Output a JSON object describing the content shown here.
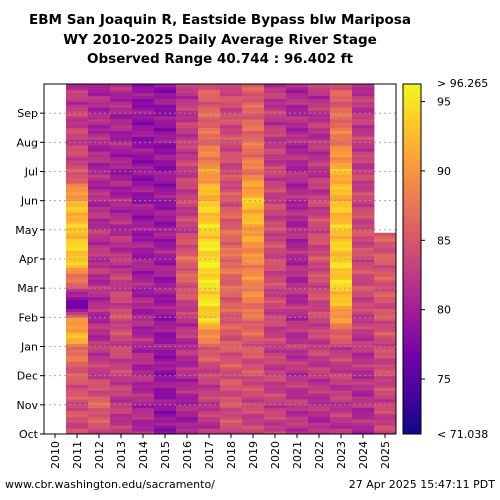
{
  "chart_data": {
    "type": "heatmap",
    "title_lines": [
      "EBM San Joaquin R, Eastside Bypass blw Mariposa",
      "WY 2010-2025 Daily Average River Stage",
      "Observed Range 40.744 : 96.402 ft"
    ],
    "x_categories": [
      "2010",
      "2011",
      "2012",
      "2013",
      "2014",
      "2015",
      "2016",
      "2017",
      "2018",
      "2019",
      "2020",
      "2021",
      "2022",
      "2023",
      "2024",
      "2025"
    ],
    "y_ticks": [
      "Oct",
      "Nov",
      "Dec",
      "Jan",
      "Feb",
      "Mar",
      "Apr",
      "May",
      "Jun",
      "Jul",
      "Aug",
      "Sep"
    ],
    "colorbar": {
      "min": 71.038,
      "max": 96.265,
      "ticks": [
        75,
        80,
        85,
        90,
        95
      ],
      "min_label": "< 71.038",
      "max_label": "> 96.265",
      "colors": [
        "#0d0887",
        "#46039f",
        "#7201a8",
        "#9c179e",
        "#bd3786",
        "#d8576b",
        "#ed7953",
        "#fb9f3a",
        "#fdca26",
        "#f0f921"
      ]
    },
    "stage_by_year": [
      {
        "year": "2010",
        "start_month": 11.9,
        "profile": [
          [
            0,
            81
          ],
          [
            9,
            81
          ],
          [
            11.9,
            81
          ]
        ]
      },
      {
        "year": "2011",
        "start_month": 0,
        "profile": [
          [
            0,
            84
          ],
          [
            2,
            85
          ],
          [
            3,
            88
          ],
          [
            3.4,
            93
          ],
          [
            4,
            88
          ],
          [
            4.3,
            79
          ],
          [
            4.5,
            74
          ],
          [
            4.7,
            80
          ],
          [
            5,
            84
          ],
          [
            6,
            94
          ],
          [
            7,
            93
          ],
          [
            8,
            92
          ],
          [
            9,
            84
          ],
          [
            12,
            82
          ]
        ]
      },
      {
        "year": "2012",
        "start_month": 0,
        "profile": [
          [
            0,
            84
          ],
          [
            1,
            86
          ],
          [
            2,
            83
          ],
          [
            4,
            81
          ],
          [
            6,
            82
          ],
          [
            9,
            81
          ],
          [
            12,
            81
          ]
        ]
      },
      {
        "year": "2013",
        "start_month": 0,
        "profile": [
          [
            0,
            82
          ],
          [
            2,
            83
          ],
          [
            4,
            84
          ],
          [
            6,
            82
          ],
          [
            9,
            80
          ],
          [
            12,
            81
          ]
        ]
      },
      {
        "year": "2014",
        "start_month": 0,
        "profile": [
          [
            0,
            81
          ],
          [
            3,
            81
          ],
          [
            6,
            80
          ],
          [
            9,
            79
          ],
          [
            12,
            79
          ]
        ]
      },
      {
        "year": "2015",
        "start_month": 0,
        "profile": [
          [
            0,
            79
          ],
          [
            2,
            79
          ],
          [
            6,
            80
          ],
          [
            9,
            79
          ],
          [
            12,
            79
          ]
        ]
      },
      {
        "year": "2016",
        "start_month": 0,
        "profile": [
          [
            0,
            80
          ],
          [
            2,
            81
          ],
          [
            4,
            82
          ],
          [
            5,
            85
          ],
          [
            6,
            86
          ],
          [
            7,
            83
          ],
          [
            9,
            83
          ],
          [
            12,
            82
          ]
        ]
      },
      {
        "year": "2017",
        "start_month": 0,
        "profile": [
          [
            0,
            82
          ],
          [
            2,
            83
          ],
          [
            3,
            86
          ],
          [
            4,
            94
          ],
          [
            6,
            95
          ],
          [
            8,
            93
          ],
          [
            9,
            90
          ],
          [
            10,
            87
          ],
          [
            12,
            85
          ]
        ]
      },
      {
        "year": "2018",
        "start_month": 0,
        "profile": [
          [
            0,
            84
          ],
          [
            3,
            85
          ],
          [
            5,
            86
          ],
          [
            6,
            87
          ],
          [
            9,
            84
          ],
          [
            12,
            84
          ]
        ]
      },
      {
        "year": "2019",
        "start_month": 0,
        "profile": [
          [
            0,
            83
          ],
          [
            3,
            85
          ],
          [
            4,
            87
          ],
          [
            5,
            89
          ],
          [
            6,
            89
          ],
          [
            8,
            93
          ],
          [
            9,
            88
          ],
          [
            12,
            85
          ]
        ]
      },
      {
        "year": "2020",
        "start_month": 0,
        "profile": [
          [
            0,
            83
          ],
          [
            3,
            83
          ],
          [
            6,
            84
          ],
          [
            9,
            83
          ],
          [
            12,
            82
          ]
        ]
      },
      {
        "year": "2021",
        "start_month": 0,
        "profile": [
          [
            0,
            82
          ],
          [
            3,
            82
          ],
          [
            6,
            81
          ],
          [
            9,
            81
          ],
          [
            12,
            81
          ]
        ]
      },
      {
        "year": "2022",
        "start_month": 0,
        "profile": [
          [
            0,
            81
          ],
          [
            3,
            83
          ],
          [
            5,
            84
          ],
          [
            7,
            84
          ],
          [
            9,
            82
          ],
          [
            12,
            82
          ]
        ]
      },
      {
        "year": "2023",
        "start_month": 0,
        "profile": [
          [
            0,
            82
          ],
          [
            3,
            83
          ],
          [
            4,
            90
          ],
          [
            5,
            94
          ],
          [
            7,
            93
          ],
          [
            9,
            92
          ],
          [
            10,
            88
          ],
          [
            12,
            85
          ]
        ]
      },
      {
        "year": "2024",
        "start_month": 0,
        "profile": [
          [
            0,
            81
          ],
          [
            3,
            82
          ],
          [
            5,
            84
          ],
          [
            7,
            84
          ],
          [
            9,
            83
          ],
          [
            12,
            82
          ]
        ]
      },
      {
        "year": "2025",
        "start_month": 0,
        "profile": [
          [
            0,
            83
          ],
          [
            3,
            84
          ],
          [
            5,
            85
          ],
          [
            6.9,
            85
          ]
        ]
      }
    ]
  },
  "footer": {
    "source": "www.cbr.washington.edu/sacramento/",
    "timestamp": "27 Apr 2025 15:47:11 PDT"
  }
}
